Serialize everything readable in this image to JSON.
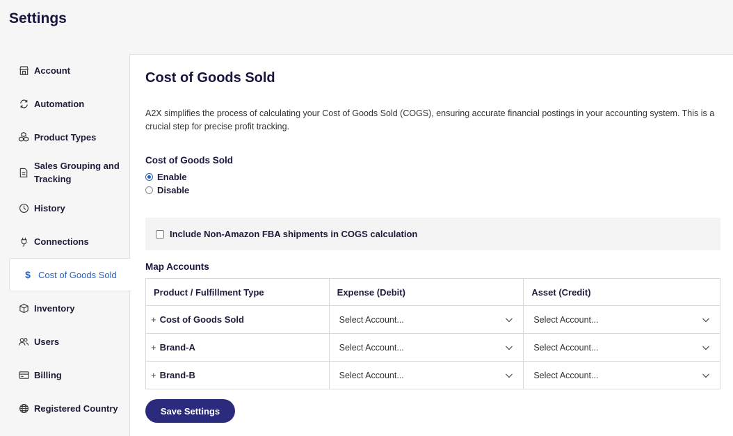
{
  "page": {
    "title": "Settings"
  },
  "sidebar": {
    "items": [
      {
        "label": "Account",
        "icon": "store-icon"
      },
      {
        "label": "Automation",
        "icon": "sync-icon"
      },
      {
        "label": "Product Types",
        "icon": "boxes-icon"
      },
      {
        "label": "Sales Grouping and Tracking",
        "icon": "document-icon"
      },
      {
        "label": "History",
        "icon": "clock-icon"
      },
      {
        "label": "Connections",
        "icon": "plug-icon"
      },
      {
        "label": "Cost of Goods Sold",
        "icon": "dollar-icon",
        "active": true
      },
      {
        "label": "Inventory",
        "icon": "package-icon"
      },
      {
        "label": "Users",
        "icon": "users-icon"
      },
      {
        "label": "Billing",
        "icon": "card-icon"
      },
      {
        "label": "Registered Country",
        "icon": "globe-icon"
      }
    ]
  },
  "main": {
    "title": "Cost of Goods Sold",
    "description": "A2X simplifies the process of calculating your Cost of Goods Sold (COGS), ensuring accurate financial postings in your accounting system. This is a crucial step for precise profit tracking.",
    "cogs_section": {
      "label": "Cost of Goods Sold",
      "options": [
        {
          "label": "Enable",
          "checked": true
        },
        {
          "label": "Disable",
          "checked": false
        }
      ]
    },
    "fba_checkbox": {
      "label": "Include Non-Amazon FBA shipments in COGS calculation",
      "checked": false
    },
    "map_accounts": {
      "label": "Map Accounts",
      "headers": [
        "Product / Fulfillment Type",
        "Expense (Debit)",
        "Asset (Credit)"
      ],
      "rows": [
        {
          "name": "Cost of Goods Sold",
          "expense": "Select Account...",
          "asset": "Select Account..."
        },
        {
          "name": "Brand-A",
          "expense": "Select Account...",
          "asset": "Select Account..."
        },
        {
          "name": "Brand-B",
          "expense": "Select Account...",
          "asset": "Select Account..."
        }
      ]
    },
    "save_label": "Save Settings"
  },
  "colors": {
    "accent": "#1e63c7",
    "primary_button": "#2a2b7c",
    "heading": "#16163f"
  }
}
